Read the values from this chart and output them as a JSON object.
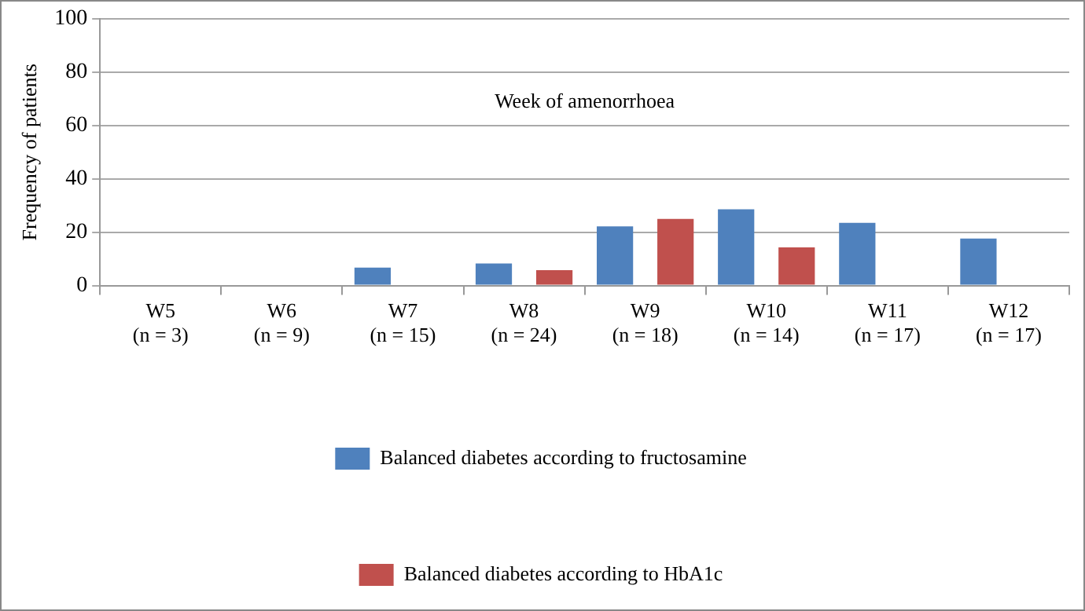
{
  "chart_data": {
    "type": "bar",
    "xlabel": "Week of amenorrhoea",
    "ylabel": "Frequency of patients",
    "categories": [
      "W5\n(n = 3)",
      "W6\n(n = 9)",
      "W7\n(n = 15)",
      "W8\n(n = 24)",
      "W9\n(n = 18)",
      "W10\n(n = 14)",
      "W11\n(n = 17)",
      "W12\n(n = 17)"
    ],
    "series": [
      {
        "name": "Balanced diabetes according to fructosamine",
        "color": "#4f81bd",
        "values": [
          0,
          0,
          6.7,
          8.3,
          22.2,
          28.6,
          23.5,
          17.6
        ]
      },
      {
        "name": "Balanced diabetes according to HbA1c",
        "color": "#c0504d",
        "values": [
          0,
          0,
          0,
          5.8,
          25,
          14.3,
          0,
          0
        ]
      }
    ],
    "ylim": [
      0,
      100
    ],
    "yticks": [
      0,
      20,
      40,
      60,
      80,
      100
    ],
    "grid": "y",
    "legend": "bottom"
  }
}
